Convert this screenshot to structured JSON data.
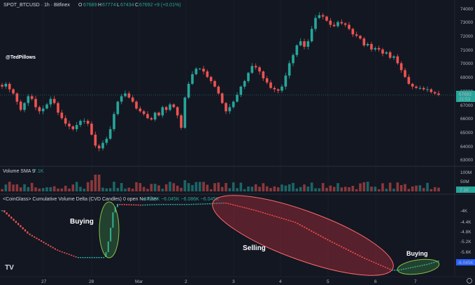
{
  "header": {
    "symbol": "SPOT_BTCUSD · 1h · Bitfinex",
    "o_label": "O",
    "o_value": "67689",
    "h_label": "H",
    "h_value": "67774",
    "l_label": "L",
    "l_value": "67434",
    "c_label": "C",
    "c_value": "67692",
    "change": "+9 (+0.01%)"
  },
  "watermark": "@TedPillows",
  "volume": {
    "label": "Volume SMA 9",
    "value": "7.1K"
  },
  "cvd": {
    "label": "<CoinGlass> Cumulative Volume Delta (CVD Candles) 0 open No Filter",
    "values": "~6.086K ~6.045K ~6.086K ~6.045K"
  },
  "annotations": {
    "buying_1": "Buying",
    "selling": "Selling",
    "buying_2": "Buying"
  },
  "price_axis": {
    "ticks": [
      "74000",
      "73000",
      "72000",
      "71000",
      "70000",
      "69000",
      "68000",
      "67000",
      "66000",
      "65000",
      "64000",
      "63000"
    ],
    "current_price": "67692",
    "countdown": "21:53"
  },
  "volume_axis": {
    "ticks": [
      "100M",
      "50M"
    ],
    "current": "7.1K"
  },
  "cvd_axis": {
    "ticks": [
      "-4K",
      "-4.4K",
      "-4.8K",
      "-5.2K",
      "-5.6K"
    ],
    "current": "-6.045K"
  },
  "time_axis": {
    "ticks": [
      "27",
      "28",
      "Mar",
      "2",
      "3",
      "4",
      "5",
      "6",
      "7"
    ]
  },
  "logo": "TV",
  "colors": {
    "up": "#26a69a",
    "down": "#ef5350",
    "bg": "#131722",
    "ellipse_green": "#4caf50",
    "ellipse_red": "#f23645",
    "cvd_current": "#2962ff"
  },
  "chart_data": {
    "type": "candlestick",
    "price_ylim": [
      62700,
      74300
    ],
    "closes": [
      68300,
      68500,
      68100,
      67800,
      67200,
      66600,
      67100,
      67600,
      67400,
      66800,
      66500,
      66700,
      67000,
      67400,
      67100,
      66400,
      66000,
      65600,
      65400,
      65200,
      65500,
      65800,
      65800,
      65600,
      64800,
      64000,
      63800,
      64200,
      64500,
      65200,
      66300,
      67200,
      67600,
      67800,
      67500,
      67200,
      66700,
      66500,
      66300,
      66000,
      65900,
      66400,
      66200,
      66800,
      66600,
      67000,
      66800,
      66200,
      65300,
      67500,
      68500,
      69200,
      69600,
      69600,
      69400,
      69000,
      68700,
      68300,
      67800,
      67100,
      66500,
      66800,
      67200,
      67700,
      68300,
      68700,
      69300,
      69800,
      69700,
      69400,
      68900,
      68600,
      68200,
      68100,
      68000,
      68300,
      69100,
      70000,
      70600,
      71300,
      71600,
      71200,
      71600,
      72500,
      73300,
      73500,
      73400,
      73100,
      72800,
      72700,
      73000,
      72900,
      72800,
      72500,
      72100,
      72000,
      71800,
      71300,
      71400,
      71000,
      71100,
      71000,
      70700,
      70800,
      70400,
      70500,
      70000,
      69500,
      69000,
      68500,
      68300,
      68200,
      68200,
      68100,
      68100,
      67900,
      67800,
      67700
    ]
  }
}
